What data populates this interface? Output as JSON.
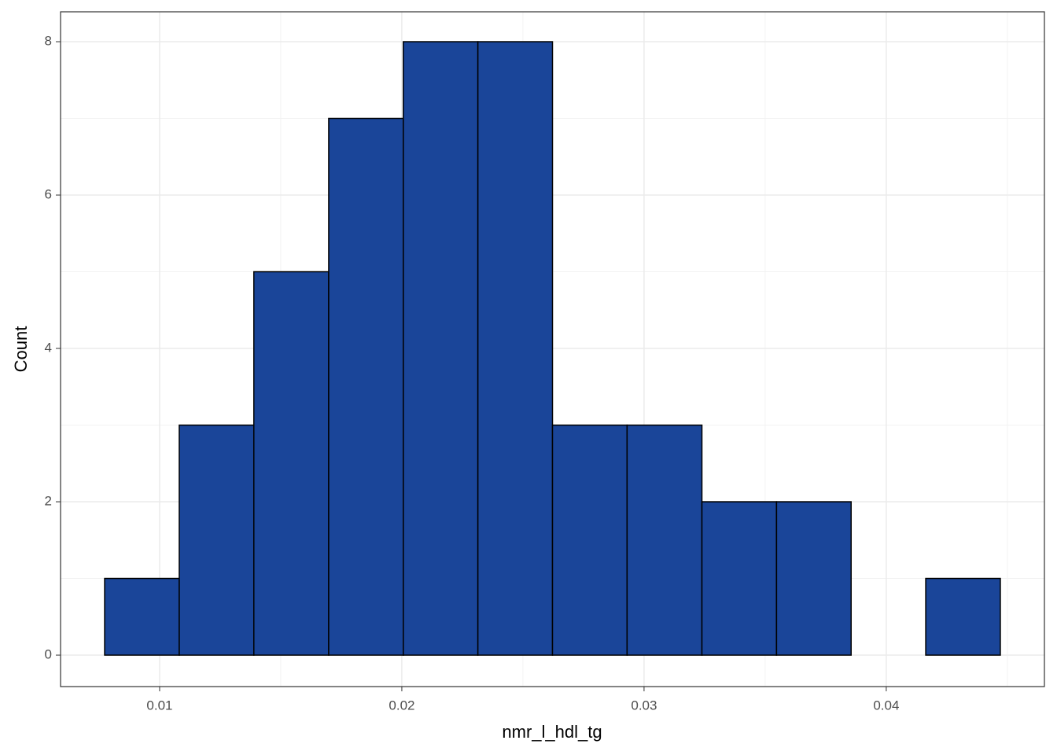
{
  "chart_data": {
    "type": "histogram",
    "x_label": "nmr_l_hdl_tg",
    "y_label": "Count",
    "bins": [
      0.00773,
      0.01081,
      0.01389,
      0.01698,
      0.02006,
      0.02314,
      0.02622,
      0.0293,
      0.03239,
      0.03547,
      0.03855,
      0.04163,
      0.04471
    ],
    "values": [
      1,
      3,
      5,
      7,
      8,
      8,
      3,
      3,
      2,
      2,
      0,
      1
    ],
    "color": "#1a4599",
    "edge_color": "#000000",
    "xlim": [
      0.00591,
      0.04653
    ],
    "xticks": [
      0.01,
      0.02,
      0.03,
      0.04
    ],
    "ylim": [
      -0.41,
      8.39
    ],
    "yticks": [
      0,
      2,
      4,
      6,
      8
    ],
    "grid": true
  }
}
